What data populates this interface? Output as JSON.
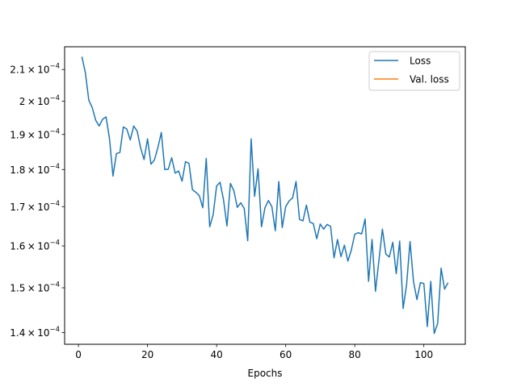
{
  "chart_data": {
    "type": "line",
    "title": "",
    "xlabel": "Epochs",
    "ylabel": "",
    "xlim": [
      -4,
      112
    ],
    "ylim": [
      0.0001375,
      0.0002175
    ],
    "yscale": "log",
    "grid": false,
    "legend_position": "top-right",
    "x_ticks": [
      {
        "value": 0,
        "label": "0"
      },
      {
        "value": 20,
        "label": "20"
      },
      {
        "value": 40,
        "label": "40"
      },
      {
        "value": 60,
        "label": "60"
      },
      {
        "value": 80,
        "label": "80"
      },
      {
        "value": 100,
        "label": "100"
      }
    ],
    "y_ticks": [
      {
        "value": 0.00014,
        "mantissa": "1.4",
        "exponent": "−4"
      },
      {
        "value": 0.00015,
        "mantissa": "1.5",
        "exponent": "−4"
      },
      {
        "value": 0.00016,
        "mantissa": "1.6",
        "exponent": "−4"
      },
      {
        "value": 0.00017,
        "mantissa": "1.7",
        "exponent": "−4"
      },
      {
        "value": 0.00018,
        "mantissa": "1.8",
        "exponent": "−4"
      },
      {
        "value": 0.00019,
        "mantissa": "1.9",
        "exponent": "−4"
      },
      {
        "value": 0.0002,
        "mantissa": "2",
        "exponent": "−4"
      },
      {
        "value": 0.00021,
        "mantissa": "2.1",
        "exponent": "−4"
      }
    ],
    "y_tick_base": "10",
    "y_tick_times": "×",
    "series": [
      {
        "name": "Loss",
        "color": "#1f77b4",
        "x": [
          1,
          2,
          3,
          4,
          5,
          6,
          7,
          8,
          9,
          10,
          11,
          12,
          13,
          14,
          15,
          16,
          17,
          18,
          19,
          20,
          21,
          22,
          23,
          24,
          25,
          26,
          27,
          28,
          29,
          30,
          31,
          32,
          33,
          34,
          35,
          36,
          37,
          38,
          39,
          40,
          41,
          42,
          43,
          44,
          45,
          46,
          47,
          48,
          49,
          50,
          51,
          52,
          53,
          54,
          55,
          56,
          57,
          58,
          59,
          60,
          61,
          62,
          63,
          64,
          65,
          66,
          67,
          68,
          69,
          70,
          71,
          72,
          73,
          74,
          75,
          76,
          77,
          78,
          79,
          80,
          81,
          82,
          83,
          84,
          85,
          86,
          87,
          88,
          89,
          90,
          91,
          92,
          93,
          94,
          95,
          96,
          97,
          98,
          99,
          100,
          101,
          102,
          103,
          104,
          105,
          106,
          107
        ],
        "y": [
          0.0002142,
          0.000209,
          0.0002003,
          0.000198,
          0.0001942,
          0.0001925,
          0.0001945,
          0.0001952,
          0.0001887,
          0.0001782,
          0.0001845,
          0.0001848,
          0.0001922,
          0.0001916,
          0.0001884,
          0.0001925,
          0.000191,
          0.0001861,
          0.0001828,
          0.0001887,
          0.0001815,
          0.0001827,
          0.0001862,
          0.0001906,
          0.00018,
          0.0001801,
          0.0001833,
          0.000179,
          0.0001796,
          0.0001768,
          0.0001822,
          0.0001817,
          0.0001745,
          0.0001738,
          0.0001729,
          0.0001697,
          0.0001831,
          0.0001648,
          0.0001679,
          0.0001755,
          0.0001765,
          0.0001718,
          0.000165,
          0.0001762,
          0.0001742,
          0.0001698,
          0.000171,
          0.0001695,
          0.0001613,
          0.0001887,
          0.0001727,
          0.0001802,
          0.0001648,
          0.0001697,
          0.0001716,
          0.00017,
          0.0001638,
          0.0001767,
          0.0001646,
          0.00017,
          0.0001715,
          0.0001723,
          0.0001767,
          0.0001667,
          0.0001663,
          0.0001704,
          0.000166,
          0.0001656,
          0.0001618,
          0.0001655,
          0.0001642,
          0.0001654,
          0.0001649,
          0.0001571,
          0.0001616,
          0.0001574,
          0.0001602,
          0.0001563,
          0.000159,
          0.0001629,
          0.0001633,
          0.000163,
          0.0001668,
          0.0001515,
          0.0001616,
          0.0001492,
          0.0001565,
          0.0001642,
          0.000158,
          0.0001573,
          0.0001609,
          0.0001533,
          0.0001612,
          0.0001453,
          0.0001507,
          0.0001611,
          0.0001515,
          0.0001473,
          0.0001512,
          0.000151,
          0.0001413,
          0.0001515,
          0.0001398,
          0.000142,
          0.0001546,
          0.0001497,
          0.0001512
        ]
      },
      {
        "name": "Val. loss",
        "color": "#ff7f0e",
        "x": [],
        "y": []
      }
    ]
  }
}
